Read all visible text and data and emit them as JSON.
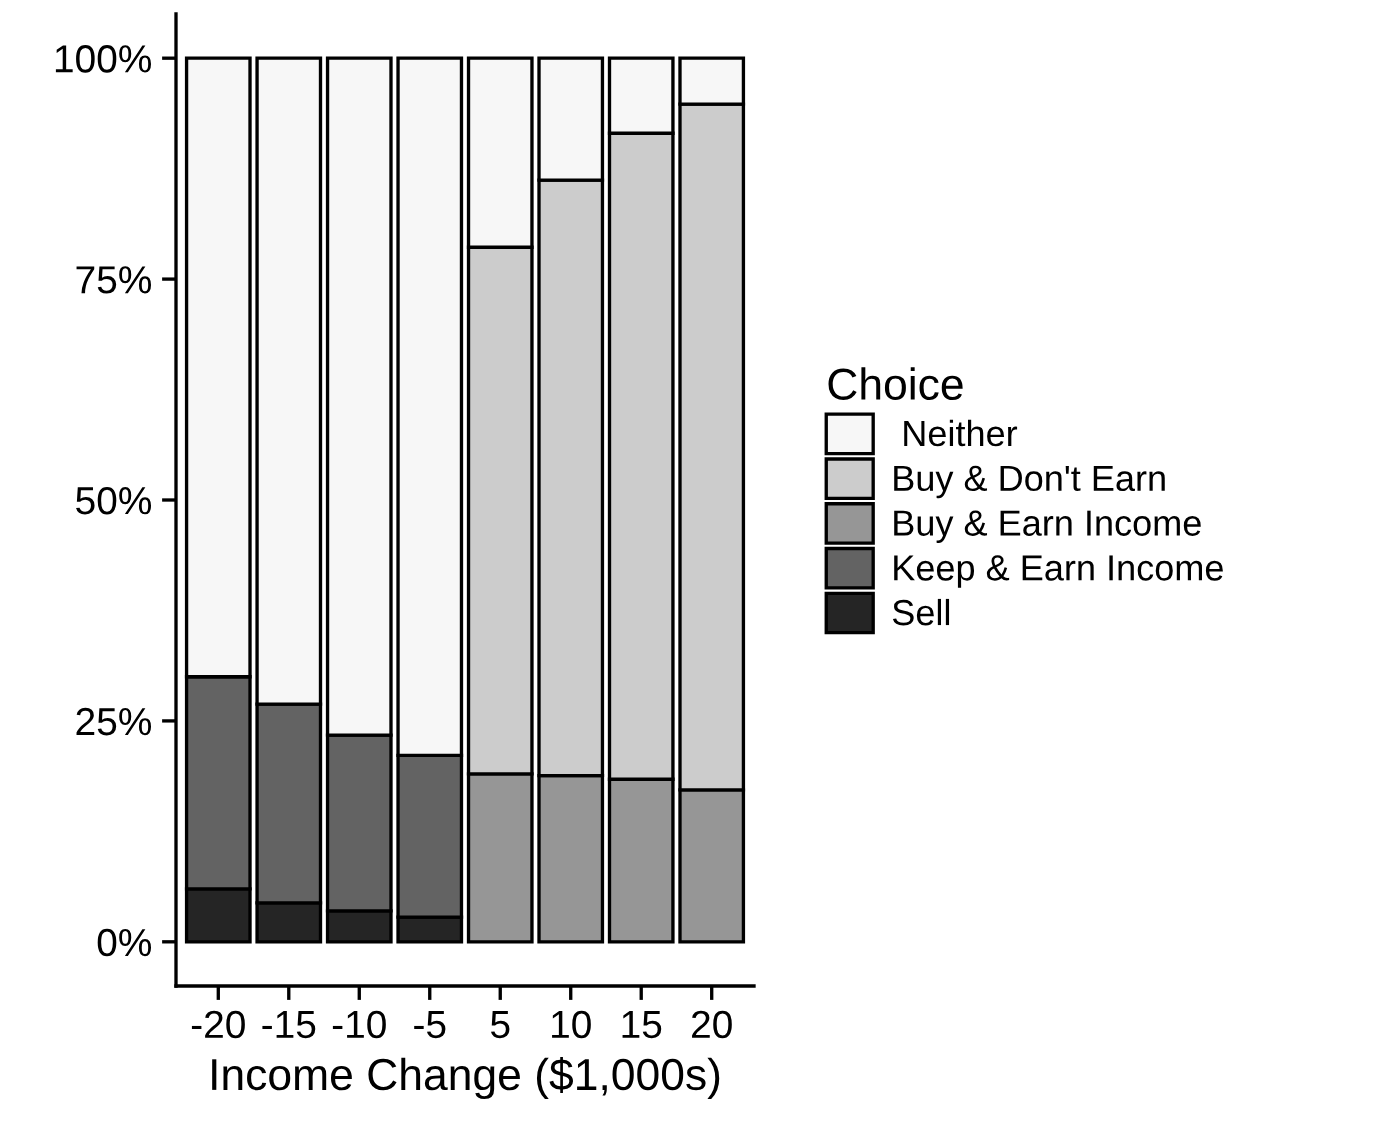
{
  "chart_data": {
    "type": "bar",
    "stacked": true,
    "xlabel": "Income Change ($1,000s)",
    "legend_title": "Choice",
    "legend": "right",
    "categories": [
      "-20",
      "-15",
      "-10",
      "-5",
      "5",
      "10",
      "15",
      "20"
    ],
    "ylim": [
      -5,
      105
    ],
    "yticks": [
      {
        "value": 0,
        "label": "0%"
      },
      {
        "value": 25,
        "label": "25%"
      },
      {
        "value": 50,
        "label": "50%"
      },
      {
        "value": 75,
        "label": "75%"
      },
      {
        "value": 100,
        "label": "100%"
      }
    ],
    "series": [
      {
        "name": "Sell",
        "color": "#252525",
        "values": [
          6.0,
          4.4,
          3.5,
          2.8,
          null,
          null,
          null,
          null
        ]
      },
      {
        "name": "Keep & Earn Income",
        "color": "#636363",
        "values": [
          24.0,
          22.5,
          19.9,
          18.3,
          null,
          null,
          null,
          null
        ]
      },
      {
        "name": "Buy & Earn Income",
        "color": "#969696",
        "values": [
          null,
          null,
          null,
          null,
          19.0,
          18.8,
          18.4,
          17.2
        ]
      },
      {
        "name": "Buy & Don't Earn",
        "color": "#cccccc",
        "values": [
          null,
          null,
          null,
          null,
          59.6,
          67.4,
          73.1,
          77.6
        ]
      },
      {
        "name": " Neither",
        "color": "#f7f7f7",
        "values": [
          70.0,
          73.1,
          76.6,
          78.9,
          21.4,
          13.8,
          8.5,
          5.2
        ]
      }
    ]
  }
}
